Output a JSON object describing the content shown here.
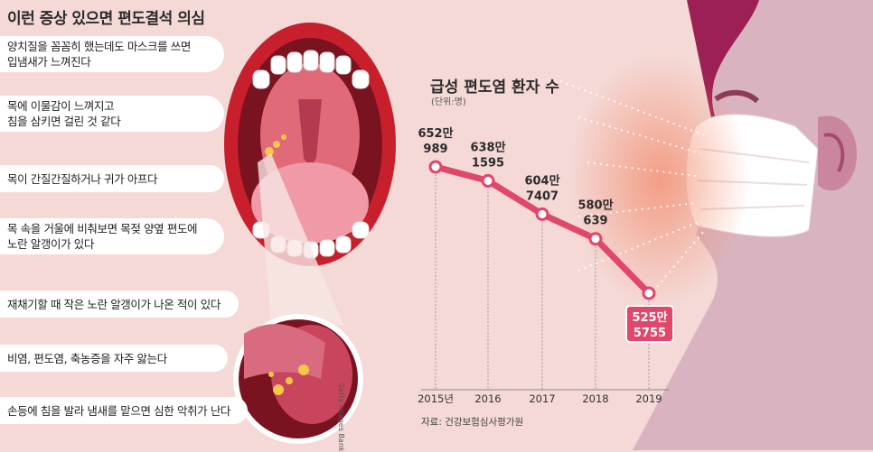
{
  "title": "이런 증상 있으면 편도결석 의심",
  "symptoms": [
    "양치질을 꼼꼼히 했는데도 마스크를 쓰면\n입냄새가 느껴진다",
    "목에 이물감이 느껴지고\n침을 삼키면 걸린 것 같다",
    "목이 간질간질하거나 귀가 아프다",
    "목 속을 거울에 비춰보면 목젖 양옆 편도에\n노란 알갱이가 있다",
    "재채기할 때 작은 노란 알갱이가 나온 적이 있다",
    "비염, 편도염, 축농증을 자주 앓는다",
    "손등에 침을 발라 냄새를 맡으면 심한 악취가 난다"
  ],
  "credit": "Getty Images Bank",
  "source": "자료: 건강보험심사평가원",
  "chart_data": {
    "type": "line",
    "title": "급성 편도염 환자 수",
    "unit": "(단위:명)",
    "categories": [
      "2015년",
      "2016",
      "2017",
      "2018",
      "2019"
    ],
    "values": [
      6520989,
      6381595,
      6047407,
      5800639,
      5255755
    ],
    "labels": [
      [
        "652만",
        "989"
      ],
      [
        "638만",
        "1595"
      ],
      [
        "604만",
        "7407"
      ],
      [
        "580만",
        "639"
      ],
      [
        "525만",
        "5755"
      ]
    ],
    "ylim": [
      5000000,
      7000000
    ],
    "grid": false,
    "colors": {
      "line": "#e0476a",
      "highlight": "#e0476a"
    }
  }
}
